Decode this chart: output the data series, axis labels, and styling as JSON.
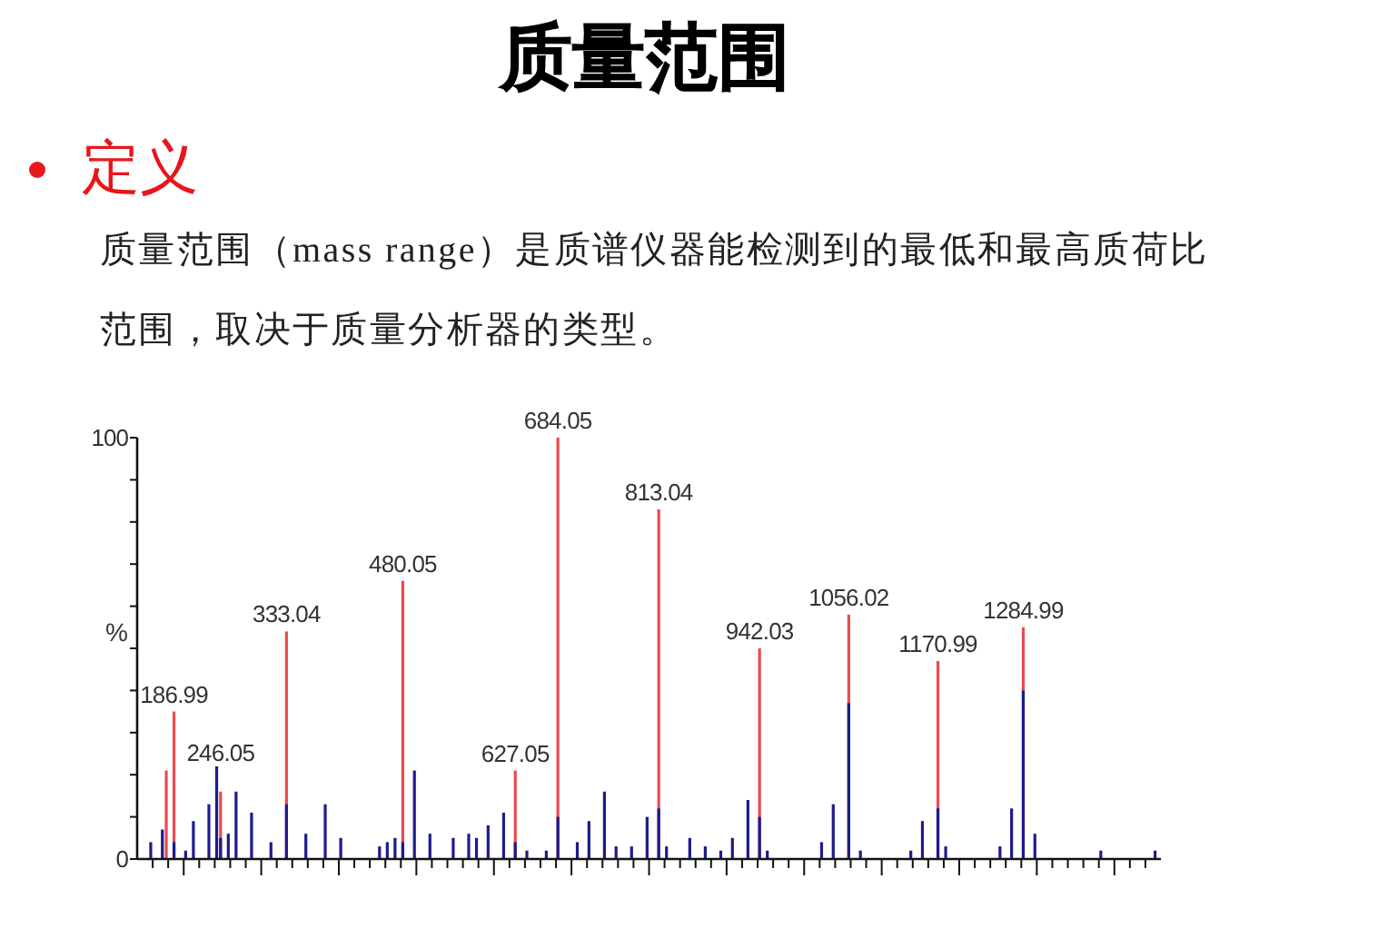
{
  "chart_data": {
    "type": "bar",
    "title": "质量范围",
    "subtitle": "定义",
    "ylabel": "%",
    "annotations": [
      "质量范围（mass range）是质谱仪器能检测到的最低和最高质荷比范围，取决于质量分析器的类型。"
    ],
    "categories": [
      null,
      null,
      null,
      null,
      null,
      null,
      null,
      null,
      null,
      "186.99",
      null,
      null,
      null,
      null,
      null,
      null,
      null,
      null,
      null,
      null,
      null,
      "246.05",
      null,
      null,
      null,
      null,
      null,
      null,
      null,
      null,
      null,
      null,
      null,
      null,
      null,
      null,
      null,
      null,
      "333.04",
      null,
      null,
      null,
      null,
      null,
      null,
      null,
      null,
      null,
      null,
      null,
      null,
      null,
      null,
      null,
      null,
      null,
      null,
      null,
      null,
      null,
      null,
      null,
      null,
      null,
      null,
      null,
      null,
      null,
      "480.05",
      null,
      null,
      null,
      null,
      null,
      null,
      null,
      null,
      null,
      null,
      null,
      null,
      null,
      null,
      null,
      null,
      null,
      null,
      null,
      null,
      null,
      null,
      null,
      null,
      null,
      null,
      null,
      null,
      "627.05",
      null,
      null,
      null,
      null,
      null,
      null,
      null,
      null,
      null,
      null,
      "684.05",
      null,
      null,
      null,
      null,
      null,
      null,
      null,
      null,
      null,
      null,
      null,
      null,
      null,
      null,
      null,
      null,
      null,
      null,
      null,
      null,
      null,
      null,
      null,
      null,
      null,
      "813.04",
      null,
      null,
      null,
      null,
      null,
      null,
      null,
      null,
      null,
      null,
      null,
      null,
      null,
      null,
      null,
      null,
      null,
      null,
      null,
      null,
      null,
      null,
      null,
      null,
      null,
      "942.03",
      null,
      null,
      null,
      null,
      null,
      null,
      null,
      null,
      null,
      null,
      null,
      null,
      null,
      null,
      null,
      null,
      null,
      null,
      null,
      null,
      null,
      null,
      "1056.02",
      null,
      null,
      null,
      null,
      null,
      null,
      null,
      null,
      null,
      null,
      null,
      null,
      null,
      null,
      null,
      null,
      null,
      null,
      null,
      null,
      null,
      null,
      "1170.99",
      null,
      null,
      null,
      null,
      null,
      null,
      null,
      null,
      null,
      null,
      null,
      null,
      null,
      null,
      null,
      null,
      null,
      null,
      null,
      null,
      null,
      "1284.99",
      null,
      null,
      null,
      null,
      null,
      null,
      null,
      null,
      null,
      null,
      null,
      null,
      null,
      null,
      null,
      null,
      null,
      null,
      null,
      null,
      null,
      null,
      null,
      null,
      null,
      null,
      null,
      null,
      null,
      null,
      null,
      null,
      null,
      null,
      null
    ],
    "ylim": [
      0,
      100
    ],
    "yticks": [
      0,
      {
        "value": 10,
        "label": null
      },
      {
        "value": 20,
        "label": null
      },
      {
        "value": 30,
        "label": null
      },
      {
        "value": 40,
        "label": null
      },
      {
        "value": 50,
        "label": null
      },
      {
        "value": 60,
        "label": null
      },
      {
        "value": 70,
        "label": null
      },
      {
        "value": 80,
        "label": null
      },
      {
        "value": 90,
        "label": null
      },
      100
    ],
    "series": [
      {
        "color": "#ea4a4e",
        "values": [
          null,
          null,
          null,
          null,
          null,
          null,
          null,
          21,
          null,
          35,
          null,
          null,
          null,
          null,
          null,
          null,
          null,
          null,
          null,
          null,
          null,
          16,
          null,
          null,
          null,
          null,
          null,
          null,
          null,
          null,
          null,
          null,
          null,
          null,
          null,
          null,
          null,
          null,
          54,
          null,
          null,
          null,
          null,
          null,
          null,
          null,
          null,
          null,
          null,
          null,
          null,
          null,
          null,
          null,
          null,
          null,
          null,
          null,
          null,
          null,
          null,
          null,
          null,
          null,
          null,
          null,
          null,
          null,
          66,
          null,
          null,
          null,
          null,
          null,
          null,
          null,
          null,
          null,
          null,
          null,
          null,
          null,
          null,
          null,
          null,
          null,
          null,
          null,
          null,
          null,
          null,
          null,
          null,
          null,
          null,
          null,
          null,
          21,
          null,
          null,
          null,
          null,
          null,
          null,
          null,
          null,
          null,
          null,
          100,
          null,
          null,
          null,
          null,
          null,
          null,
          null,
          null,
          null,
          null,
          null,
          null,
          null,
          null,
          null,
          null,
          null,
          null,
          null,
          null,
          null,
          null,
          null,
          null,
          null,
          83,
          null,
          null,
          null,
          null,
          null,
          null,
          null,
          null,
          null,
          null,
          null,
          null,
          null,
          null,
          null,
          null,
          null,
          null,
          null,
          null,
          null,
          null,
          null,
          null,
          null,
          50,
          null,
          null,
          null,
          null,
          null,
          null,
          null,
          null,
          null,
          null,
          null,
          null,
          null,
          null,
          null,
          null,
          null,
          null,
          null,
          null,
          null,
          null,
          58,
          null,
          null,
          null,
          null,
          null,
          null,
          null,
          null,
          null,
          null,
          null,
          null,
          null,
          null,
          null,
          null,
          null,
          null,
          null,
          null,
          null,
          null,
          47,
          null,
          null,
          null,
          null,
          null,
          null,
          null,
          null,
          null,
          null,
          null,
          null,
          null,
          null,
          null,
          null,
          null,
          null,
          null,
          null,
          null,
          55,
          null,
          null,
          null,
          null,
          null,
          null,
          null,
          null,
          null,
          null,
          null,
          null,
          null,
          null,
          null,
          null,
          null,
          null,
          null,
          null,
          null,
          null,
          null,
          null,
          null,
          null,
          null,
          null,
          null,
          null,
          null,
          null,
          null,
          null,
          null
        ]
      },
      {
        "color": "#1c1c8c",
        "values": [
          null,
          null,
          null,
          4,
          null,
          null,
          7,
          null,
          null,
          4,
          null,
          null,
          2,
          null,
          9,
          null,
          null,
          null,
          13,
          null,
          22,
          5,
          null,
          6,
          null,
          16,
          null,
          null,
          null,
          11,
          null,
          null,
          null,
          null,
          4,
          null,
          null,
          null,
          13,
          null,
          null,
          null,
          null,
          6,
          null,
          null,
          null,
          null,
          13,
          null,
          null,
          null,
          5,
          null,
          null,
          null,
          null,
          null,
          null,
          null,
          null,
          null,
          3,
          null,
          4,
          null,
          5,
          null,
          4,
          null,
          null,
          21,
          null,
          null,
          null,
          6,
          null,
          null,
          null,
          null,
          null,
          5,
          null,
          null,
          null,
          6,
          null,
          5,
          null,
          null,
          8,
          null,
          null,
          null,
          11,
          null,
          null,
          4,
          null,
          null,
          2,
          null,
          null,
          null,
          null,
          2,
          null,
          null,
          10,
          null,
          null,
          null,
          null,
          4,
          null,
          null,
          9,
          null,
          null,
          null,
          16,
          null,
          null,
          3,
          null,
          null,
          null,
          3,
          null,
          null,
          null,
          10,
          null,
          null,
          12,
          null,
          3,
          null,
          null,
          null,
          null,
          null,
          5,
          null,
          null,
          null,
          3,
          null,
          null,
          null,
          2,
          null,
          null,
          5,
          null,
          null,
          null,
          14,
          null,
          null,
          10,
          null,
          2,
          null,
          null,
          null,
          null,
          null,
          null,
          null,
          null,
          null,
          null,
          null,
          null,
          null,
          4,
          null,
          null,
          13,
          null,
          null,
          null,
          37,
          null,
          null,
          2,
          null,
          null,
          null,
          null,
          null,
          null,
          null,
          null,
          null,
          null,
          null,
          null,
          2,
          null,
          null,
          9,
          null,
          null,
          null,
          12,
          null,
          3,
          null,
          null,
          null,
          null,
          null,
          null,
          null,
          null,
          null,
          null,
          null,
          null,
          null,
          3,
          null,
          null,
          12,
          null,
          null,
          40,
          null,
          null,
          6,
          null,
          null,
          null,
          null,
          null,
          null,
          null,
          null,
          null,
          null,
          null,
          null,
          null,
          null,
          null,
          null,
          2,
          null,
          null,
          null,
          null,
          null,
          null,
          null,
          null,
          null,
          null,
          null,
          null,
          null,
          2,
          null
        ]
      }
    ]
  }
}
